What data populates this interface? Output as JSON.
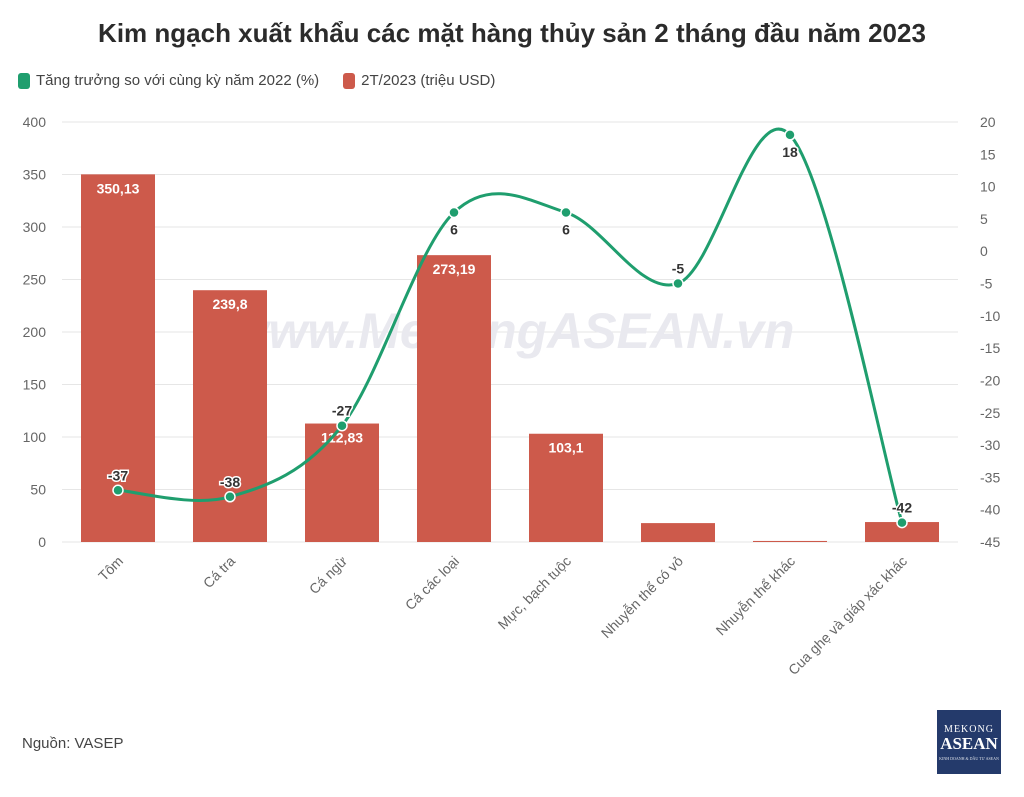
{
  "title": "Kim ngạch xuất khẩu các mặt hàng thủy sản 2 tháng đầu năm 2023",
  "source": "Nguồn: VASEP",
  "watermark": "www.MekongASEAN.vn",
  "logo": {
    "line1": "MEKONG",
    "line2": "ASEAN",
    "line3": "KINH DOANH & DẦU TƯ ASEAN"
  },
  "colors": {
    "bar": "#cd5a4b",
    "line": "#1f9e6e",
    "grid": "#e6e6e6",
    "axis_text": "#666666"
  },
  "chart_data": {
    "type": "bar",
    "categories": [
      "Tôm",
      "Cá tra",
      "Cá ngừ",
      "Cá các loại",
      "Mực, bạch tuộc",
      "Nhuyễn thể có vỏ",
      "Nhuyễn thể khác",
      "Cua ghẹ và giáp xác khác"
    ],
    "series": [
      {
        "name": "2T/2023 (triệu USD)",
        "type": "bar",
        "axis": "left",
        "values": [
          350.13,
          239.8,
          112.83,
          273.19,
          103.1,
          18,
          1,
          19
        ],
        "labels": [
          "350,13",
          "239,8",
          "112,83",
          "273,19",
          "103,1",
          "",
          "",
          ""
        ]
      },
      {
        "name": "Tăng trưởng so với cùng kỳ năm 2022 (%)",
        "type": "line",
        "axis": "right",
        "values": [
          -37,
          -38,
          -27,
          6,
          6,
          -5,
          18,
          -42
        ],
        "labels": [
          "-37",
          "-38",
          "-27",
          "6",
          "6",
          "-5",
          "18",
          "-42"
        ]
      }
    ],
    "y_left": {
      "min": 0,
      "max": 400,
      "ticks": [
        "0",
        "50",
        "100",
        "150",
        "200",
        "250",
        "300",
        "350",
        "400"
      ]
    },
    "y_right": {
      "min": -45,
      "max": 20,
      "ticks": [
        "20",
        "15",
        "10",
        "5",
        "0",
        "-5",
        "-10",
        "-15",
        "-20",
        "-25",
        "-30",
        "-35",
        "-40",
        "-45"
      ]
    },
    "legend_position": "top-left",
    "grid": true
  }
}
